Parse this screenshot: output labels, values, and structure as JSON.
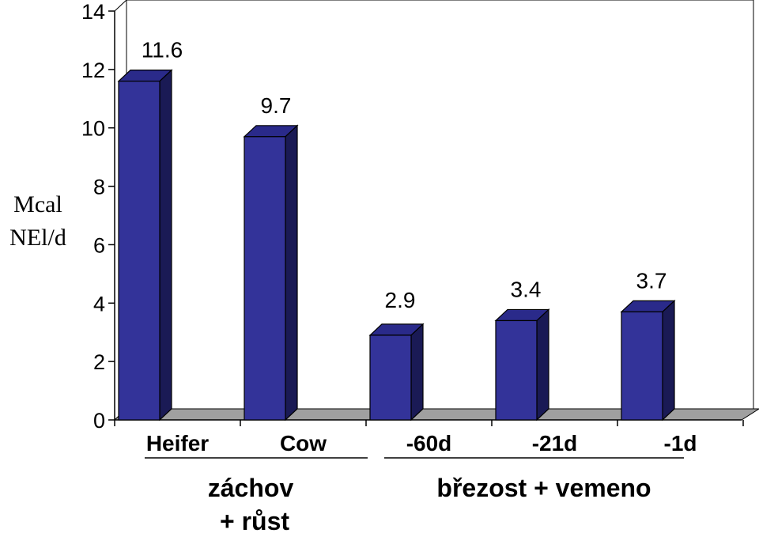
{
  "chart_data": {
    "type": "bar",
    "style": "3d",
    "categories": [
      "Heifer",
      "Cow",
      "-60d",
      "-21d",
      "-1d"
    ],
    "values": [
      11.6,
      9.7,
      2.9,
      3.4,
      3.7
    ],
    "data_labels": [
      "11.6",
      "9.7",
      "2.9",
      "3.4",
      "3.7"
    ],
    "ylabel_lines": [
      "Mcal",
      "NEl/d"
    ],
    "ylim": [
      0,
      14
    ],
    "yticks": [
      0,
      2,
      4,
      6,
      8,
      10,
      12,
      14
    ],
    "groups": [
      {
        "label_lines": [
          "záchov",
          "+ růst"
        ],
        "categories": [
          "Heifer",
          "Cow"
        ]
      },
      {
        "label_lines": [
          "březost + vemeno"
        ],
        "categories": [
          "-60d",
          "-21d",
          "-1d"
        ]
      }
    ],
    "colors": {
      "bar_front": "#333399",
      "bar_top": "#2a2a8a",
      "bar_side": "#1a1a55",
      "floor": "#a0a0a0"
    }
  }
}
